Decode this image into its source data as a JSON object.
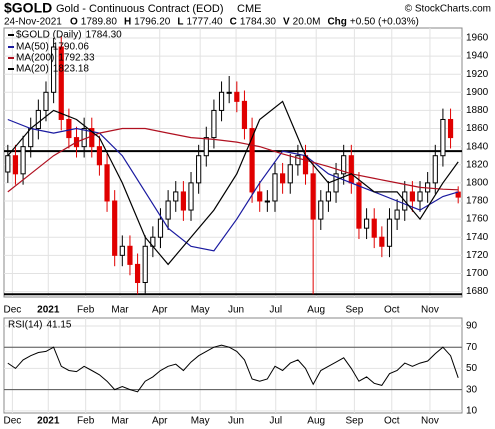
{
  "chart_data": {
    "type": "candlestick",
    "title": "$GOLD",
    "subtitle": "Gold - Continuous Contract (EOD)",
    "exchange": "CME",
    "source": "© StockCharts.com",
    "date": "24-Nov-2021",
    "quote": [
      {
        "label": "O",
        "value": "1789.80"
      },
      {
        "label": "H",
        "value": "1796.20"
      },
      {
        "label": "L",
        "value": "1777.40"
      },
      {
        "label": "C",
        "value": "1784.30"
      },
      {
        "label": "V",
        "value": "20.0M"
      },
      {
        "label": "Chg",
        "value": "+0.50 (+0.03%)"
      }
    ],
    "legend_label": "$GOLD (Daily)",
    "legend_value": "1784.30",
    "up_color": "#000000",
    "down_color": "#e00000",
    "open": [
      1812,
      1830,
      1810,
      1840,
      1860,
      1880,
      1900,
      1950,
      1870,
      1850,
      1840,
      1860,
      1840,
      1820,
      1780,
      1720,
      1730,
      1710,
      1690,
      1730,
      1740,
      1760,
      1780,
      1790,
      1770,
      1800,
      1830,
      1850,
      1880,
      1900,
      1900,
      1890,
      1860,
      1790,
      1780,
      1780,
      1810,
      1800,
      1820,
      1830,
      1810,
      1760,
      1780,
      1790,
      1810,
      1830,
      1800,
      1750,
      1760,
      1740,
      1730,
      1760,
      1770,
      1790,
      1780,
      1790,
      1800,
      1830,
      1870,
      1789.8
    ],
    "high": [
      1842,
      1842,
      1852,
      1872,
      1892,
      1912,
      1960,
      1962,
      1882,
      1862,
      1872,
      1872,
      1852,
      1832,
      1792,
      1742,
      1742,
      1722,
      1742,
      1752,
      1772,
      1792,
      1802,
      1802,
      1812,
      1842,
      1862,
      1892,
      1912,
      1918,
      1912,
      1902,
      1872,
      1802,
      1792,
      1822,
      1822,
      1832,
      1842,
      1842,
      1822,
      1792,
      1802,
      1822,
      1842,
      1842,
      1812,
      1772,
      1772,
      1752,
      1772,
      1782,
      1802,
      1802,
      1802,
      1812,
      1842,
      1882,
      1882,
      1796.2
    ],
    "low": [
      1800,
      1798,
      1798,
      1828,
      1848,
      1868,
      1888,
      1858,
      1838,
      1828,
      1828,
      1828,
      1808,
      1768,
      1708,
      1708,
      1698,
      1677,
      1678,
      1718,
      1728,
      1748,
      1768,
      1758,
      1758,
      1788,
      1818,
      1838,
      1868,
      1888,
      1878,
      1848,
      1778,
      1768,
      1768,
      1768,
      1788,
      1788,
      1808,
      1798,
      1677,
      1748,
      1768,
      1778,
      1798,
      1788,
      1738,
      1738,
      1728,
      1718,
      1718,
      1748,
      1758,
      1768,
      1768,
      1778,
      1788,
      1818,
      1838,
      1777.4
    ],
    "close": [
      1830,
      1810,
      1840,
      1860,
      1880,
      1900,
      1950,
      1870,
      1850,
      1840,
      1860,
      1840,
      1820,
      1780,
      1720,
      1730,
      1710,
      1690,
      1730,
      1740,
      1760,
      1780,
      1790,
      1770,
      1800,
      1830,
      1850,
      1880,
      1900,
      1900,
      1890,
      1860,
      1790,
      1780,
      1780,
      1810,
      1800,
      1820,
      1830,
      1810,
      1760,
      1780,
      1790,
      1810,
      1830,
      1800,
      1750,
      1760,
      1740,
      1730,
      1760,
      1770,
      1790,
      1780,
      1790,
      1800,
      1830,
      1870,
      1850,
      1784.3
    ],
    "series": [
      {
        "name": "MA(50)",
        "color": "#1a1aa0",
        "x": [
          0,
          3,
          6,
          9,
          12,
          15,
          18,
          21,
          24,
          27,
          30,
          33,
          36,
          39,
          42,
          45,
          48,
          51,
          54,
          57,
          59
        ],
        "values": [
          1870,
          1860,
          1855,
          1860,
          1855,
          1830,
          1790,
          1750,
          1730,
          1725,
          1760,
          1800,
          1835,
          1830,
          1810,
          1800,
          1790,
          1780,
          1770,
          1785,
          1790.06
        ]
      },
      {
        "name": "MA(200)",
        "color": "#b01020",
        "x": [
          0,
          3,
          6,
          9,
          12,
          15,
          18,
          21,
          24,
          27,
          30,
          33,
          36,
          39,
          42,
          45,
          48,
          51,
          54,
          57,
          59
        ],
        "values": [
          1790,
          1810,
          1830,
          1845,
          1855,
          1860,
          1860,
          1855,
          1850,
          1848,
          1845,
          1840,
          1832,
          1825,
          1818,
          1810,
          1805,
          1800,
          1795,
          1793,
          1792.33
        ]
      },
      {
        "name": "MA(20)",
        "color": "#000000",
        "x": [
          0,
          3,
          6,
          9,
          12,
          15,
          18,
          21,
          24,
          27,
          30,
          33,
          36,
          39,
          42,
          45,
          48,
          51,
          54,
          57,
          59
        ],
        "values": [
          1830,
          1860,
          1880,
          1870,
          1850,
          1800,
          1740,
          1710,
          1740,
          1770,
          1810,
          1870,
          1890,
          1830,
          1800,
          1810,
          1790,
          1790,
          1760,
          1800,
          1823.18
        ]
      }
    ],
    "levels": [
      1835,
      1677
    ],
    "xlim": [
      -0.5,
      59.5
    ],
    "ylim": [
      1674,
      1971
    ],
    "yticks": [
      1680,
      1700,
      1720,
      1740,
      1760,
      1780,
      1800,
      1820,
      1840,
      1860,
      1880,
      1900,
      1920,
      1940,
      1960
    ],
    "xticks": [
      {
        "value": 0.6,
        "label": "Dec"
      },
      {
        "value": 5.3,
        "label": "2021"
      },
      {
        "value": 10.2,
        "label": "Feb"
      },
      {
        "value": 14.7,
        "label": "Mar"
      },
      {
        "value": 19.9,
        "label": "Apr"
      },
      {
        "value": 25.2,
        "label": "May"
      },
      {
        "value": 29.9,
        "label": "Jun"
      },
      {
        "value": 35.1,
        "label": "Jul"
      },
      {
        "value": 40.4,
        "label": "Aug"
      },
      {
        "value": 45.4,
        "label": "Sep"
      },
      {
        "value": 50.3,
        "label": "Oct"
      },
      {
        "value": 55.3,
        "label": "Nov"
      }
    ],
    "grid": true,
    "rsi": {
      "name": "RSI(14)",
      "color": "#000000",
      "ylim": [
        8,
        97.5
      ],
      "yticks": [
        10,
        30,
        50,
        70,
        90
      ],
      "bands": [
        30,
        70
      ],
      "values": [
        55,
        50,
        58,
        62,
        65,
        66,
        70,
        52,
        48,
        47,
        52,
        48,
        44,
        38,
        30,
        33,
        30,
        28,
        38,
        42,
        48,
        52,
        54,
        48,
        56,
        62,
        66,
        70,
        72,
        70,
        66,
        58,
        40,
        38,
        40,
        52,
        48,
        55,
        58,
        50,
        35,
        48,
        52,
        56,
        60,
        50,
        38,
        42,
        36,
        34,
        45,
        48,
        55,
        52,
        55,
        57,
        64,
        70,
        62,
        41.15
      ]
    }
  }
}
